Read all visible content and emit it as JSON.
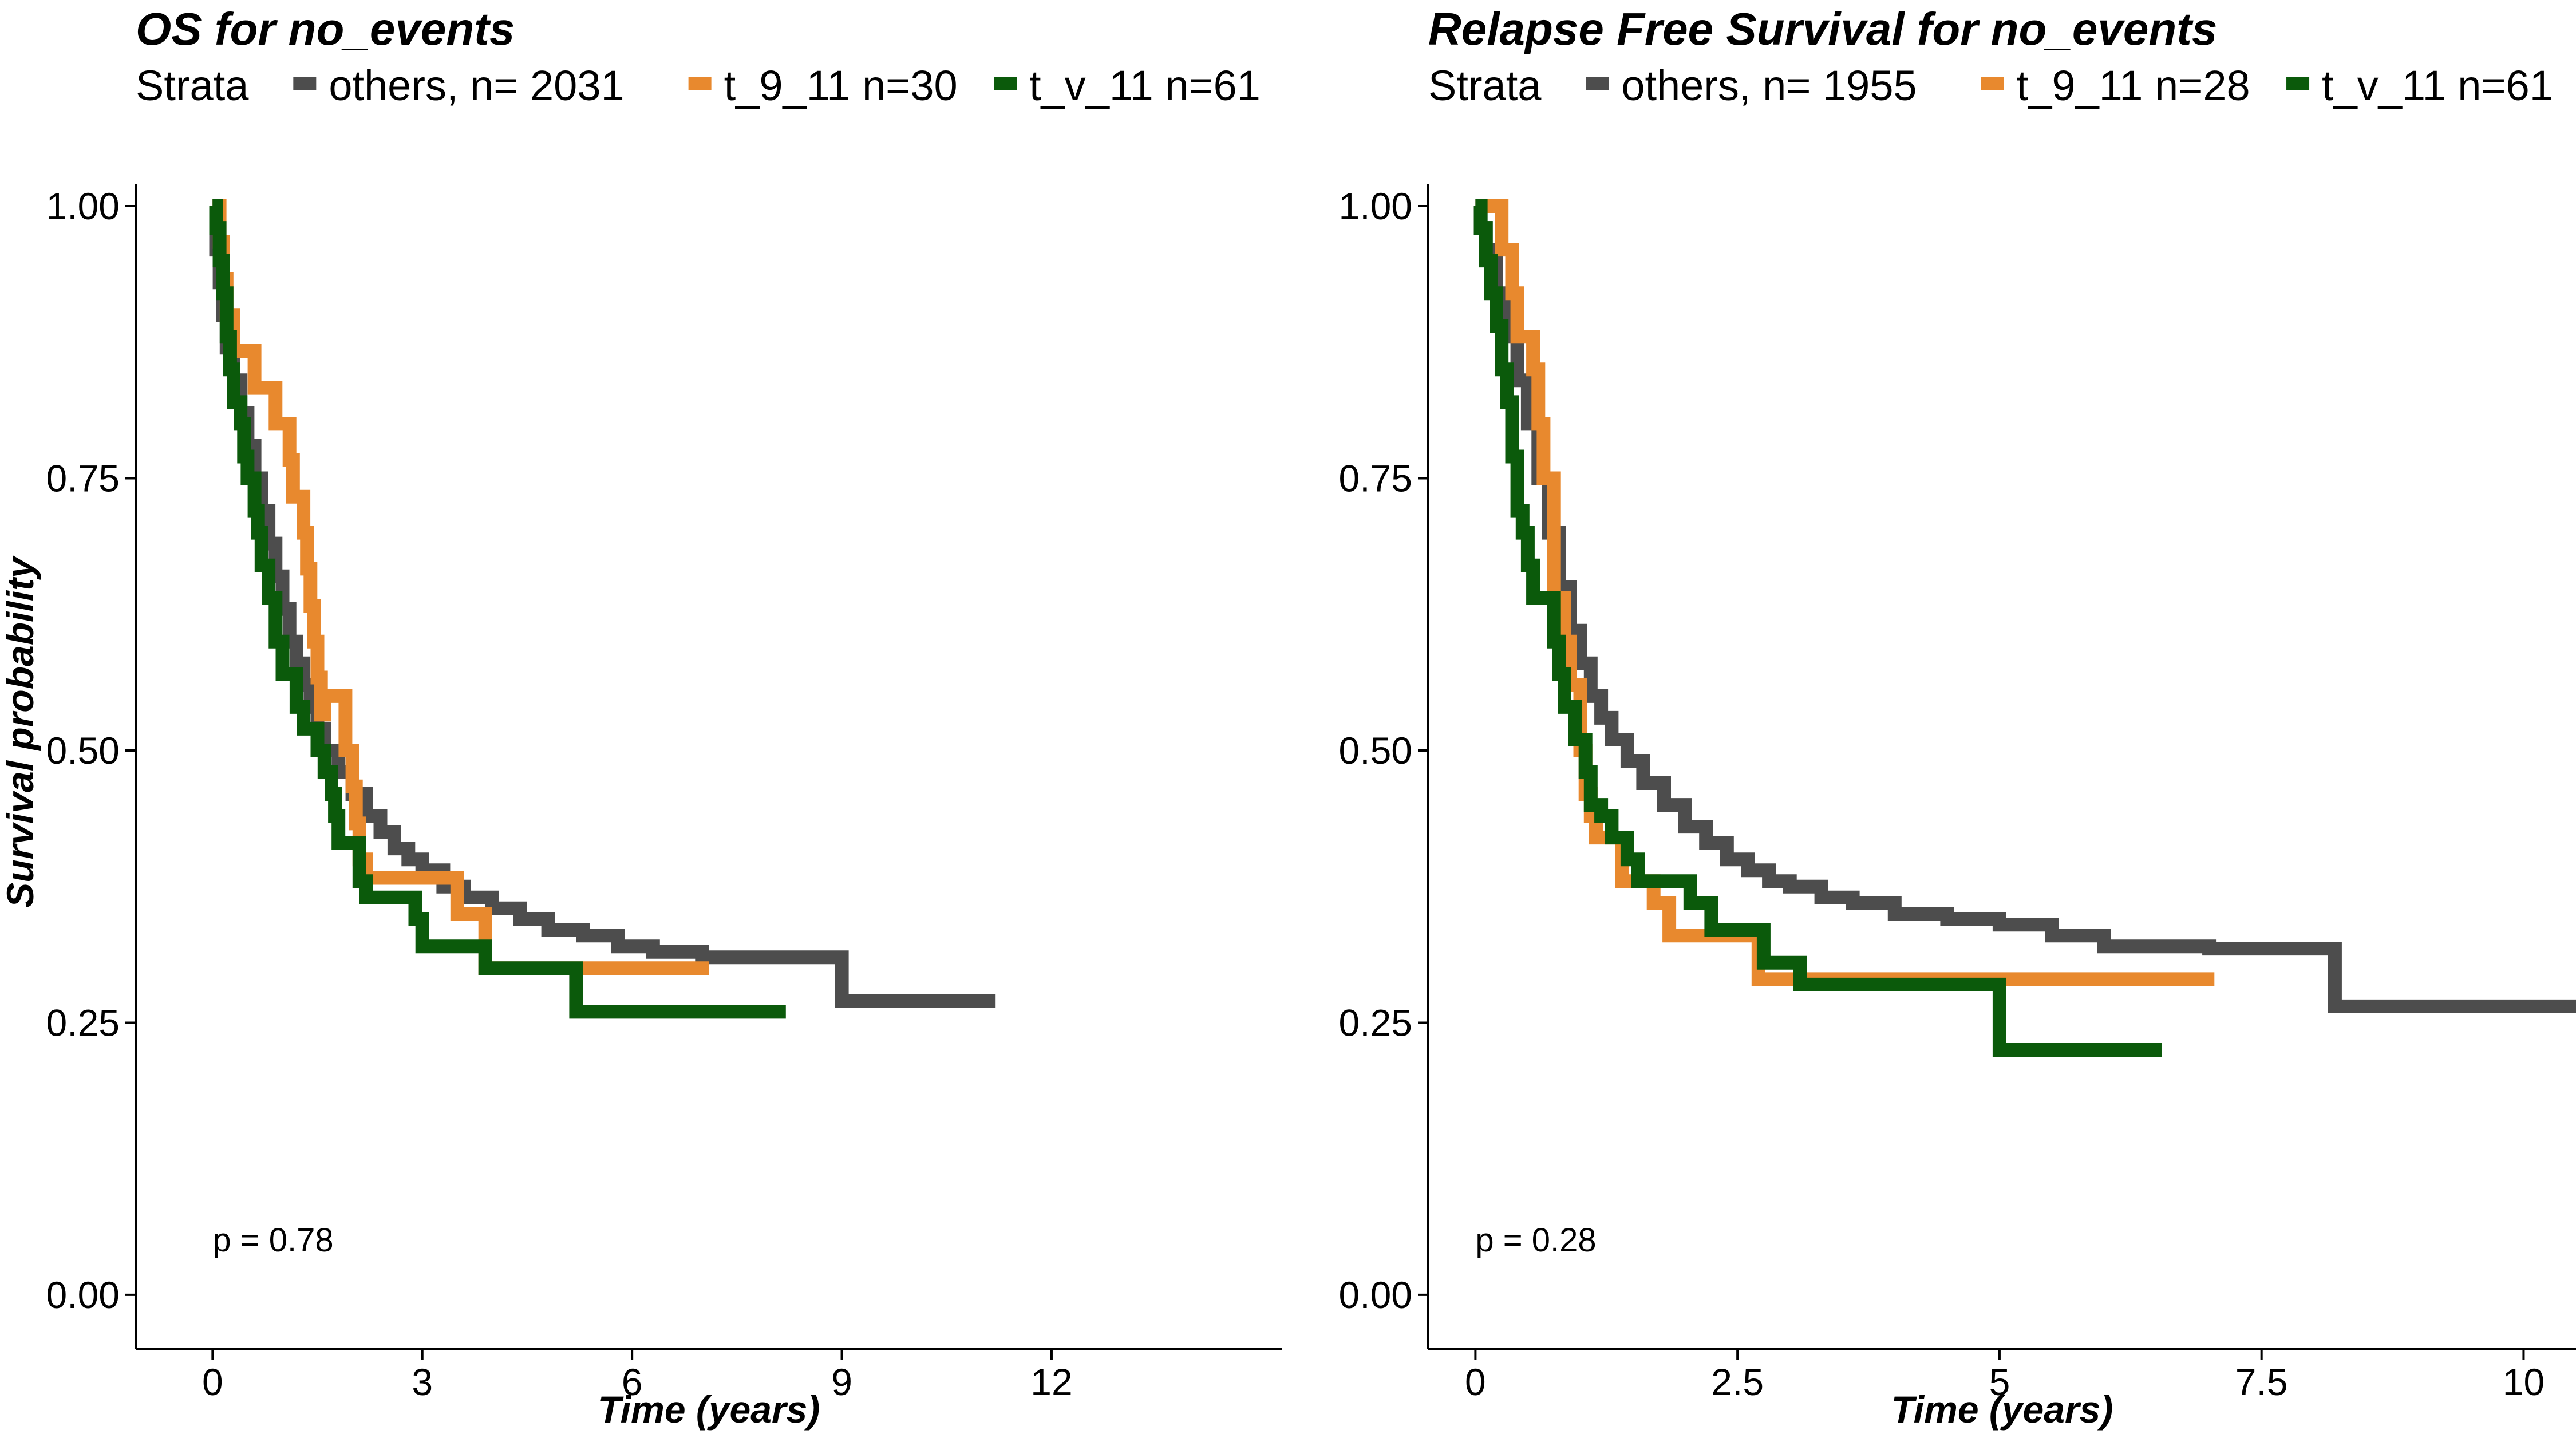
{
  "chart_data": [
    {
      "type": "line",
      "step": true,
      "title": "OS  for  no_events",
      "legend_title": "Strata",
      "legend_position": "top",
      "xlabel": "Time (years)",
      "ylabel": "Survival probability",
      "xlim": [
        -1.1,
        15.3
      ],
      "ylim": [
        -0.05,
        1.02
      ],
      "xticks": [
        0,
        3,
        6,
        9,
        12
      ],
      "xtick_labels": [
        "0",
        "3",
        "6",
        "9",
        "12"
      ],
      "yticks": [
        0,
        0.25,
        0.5,
        0.75,
        1
      ],
      "ytick_labels": [
        "0.00",
        "0.25",
        "0.50",
        "0.75",
        "1.00"
      ],
      "annotation": "p = 0.78",
      "annotation_pos": [
        0,
        0.04
      ],
      "grid": false,
      "series": [
        {
          "name": "others, n= 2031",
          "color": "#4d4d4d",
          "points": [
            [
              0,
              1.0
            ],
            [
              0.05,
              0.96
            ],
            [
              0.1,
              0.93
            ],
            [
              0.15,
              0.9
            ],
            [
              0.2,
              0.87
            ],
            [
              0.3,
              0.84
            ],
            [
              0.4,
              0.81
            ],
            [
              0.5,
              0.78
            ],
            [
              0.6,
              0.75
            ],
            [
              0.7,
              0.72
            ],
            [
              0.8,
              0.69
            ],
            [
              0.9,
              0.66
            ],
            [
              1.0,
              0.63
            ],
            [
              1.1,
              0.6
            ],
            [
              1.2,
              0.58
            ],
            [
              1.3,
              0.56
            ],
            [
              1.4,
              0.54
            ],
            [
              1.5,
              0.52
            ],
            [
              1.6,
              0.5
            ],
            [
              1.8,
              0.48
            ],
            [
              2.0,
              0.46
            ],
            [
              2.2,
              0.44
            ],
            [
              2.4,
              0.425
            ],
            [
              2.6,
              0.41
            ],
            [
              2.8,
              0.4
            ],
            [
              3.0,
              0.39
            ],
            [
              3.3,
              0.375
            ],
            [
              3.6,
              0.365
            ],
            [
              4.0,
              0.355
            ],
            [
              4.4,
              0.345
            ],
            [
              4.8,
              0.335
            ],
            [
              5.3,
              0.33
            ],
            [
              5.8,
              0.32
            ],
            [
              6.3,
              0.315
            ],
            [
              7.0,
              0.31
            ],
            [
              9.0,
              0.31
            ],
            [
              9.0,
              0.27
            ],
            [
              11.2,
              0.27
            ]
          ]
        },
        {
          "name": "t_9_11 n=30",
          "color": "#e8892e",
          "points": [
            [
              0,
              1.0
            ],
            [
              0.1,
              0.967
            ],
            [
              0.15,
              0.933
            ],
            [
              0.2,
              0.9
            ],
            [
              0.3,
              0.867
            ],
            [
              0.6,
              0.867
            ],
            [
              0.6,
              0.833
            ],
            [
              0.9,
              0.833
            ],
            [
              0.9,
              0.8
            ],
            [
              1.1,
              0.8
            ],
            [
              1.1,
              0.767
            ],
            [
              1.15,
              0.733
            ],
            [
              1.3,
              0.7
            ],
            [
              1.35,
              0.667
            ],
            [
              1.4,
              0.633
            ],
            [
              1.45,
              0.6
            ],
            [
              1.5,
              0.567
            ],
            [
              1.55,
              0.567
            ],
            [
              1.55,
              0.533
            ],
            [
              1.6,
              0.533
            ],
            [
              1.6,
              0.55
            ],
            [
              1.9,
              0.55
            ],
            [
              1.9,
              0.5
            ],
            [
              2.0,
              0.467
            ],
            [
              2.05,
              0.433
            ],
            [
              2.1,
              0.4
            ],
            [
              2.2,
              0.383
            ],
            [
              3.5,
              0.383
            ],
            [
              3.5,
              0.35
            ],
            [
              3.9,
              0.35
            ],
            [
              3.9,
              0.3
            ],
            [
              7.1,
              0.3
            ]
          ]
        },
        {
          "name": "t_v_11 n=61",
          "color": "#0b5a0b",
          "points": [
            [
              0,
              1.0
            ],
            [
              0.05,
              0.98
            ],
            [
              0.1,
              0.95
            ],
            [
              0.15,
              0.92
            ],
            [
              0.2,
              0.88
            ],
            [
              0.25,
              0.85
            ],
            [
              0.3,
              0.82
            ],
            [
              0.4,
              0.8
            ],
            [
              0.45,
              0.77
            ],
            [
              0.5,
              0.75
            ],
            [
              0.6,
              0.72
            ],
            [
              0.65,
              0.7
            ],
            [
              0.7,
              0.67
            ],
            [
              0.8,
              0.64
            ],
            [
              0.9,
              0.6
            ],
            [
              1.0,
              0.57
            ],
            [
              1.2,
              0.57
            ],
            [
              1.2,
              0.54
            ],
            [
              1.3,
              0.52
            ],
            [
              1.5,
              0.5
            ],
            [
              1.6,
              0.48
            ],
            [
              1.7,
              0.46
            ],
            [
              1.75,
              0.44
            ],
            [
              1.8,
              0.415
            ],
            [
              2.1,
              0.415
            ],
            [
              2.1,
              0.38
            ],
            [
              2.2,
              0.38
            ],
            [
              2.2,
              0.365
            ],
            [
              2.9,
              0.365
            ],
            [
              2.9,
              0.345
            ],
            [
              3.0,
              0.345
            ],
            [
              3.0,
              0.32
            ],
            [
              3.9,
              0.32
            ],
            [
              3.9,
              0.3
            ],
            [
              5.2,
              0.3
            ],
            [
              5.2,
              0.26
            ],
            [
              8.2,
              0.26
            ]
          ]
        }
      ]
    },
    {
      "type": "line",
      "step": true,
      "title": "Relapse Free Survival for  no_events",
      "legend_title": "Strata",
      "legend_position": "top",
      "xlabel": "Time (years)",
      "ylabel": "",
      "xlim": [
        -0.45,
        10.5
      ],
      "ylim": [
        -0.05,
        1.02
      ],
      "xticks": [
        0,
        2.5,
        5,
        7.5,
        10
      ],
      "xtick_labels": [
        "0",
        "2.5",
        "5",
        "7.5",
        "10"
      ],
      "yticks": [
        0,
        0.25,
        0.5,
        0.75,
        1
      ],
      "ytick_labels": [
        "0.00",
        "0.25",
        "0.50",
        "0.75",
        "1.00"
      ],
      "annotation": "p = 0.28",
      "annotation_pos": [
        0,
        0.04
      ],
      "grid": false,
      "series": [
        {
          "name": "others, n= 1955",
          "color": "#4d4d4d",
          "points": [
            [
              0,
              1.0
            ],
            [
              0.05,
              0.98
            ],
            [
              0.1,
              0.96
            ],
            [
              0.2,
              0.92
            ],
            [
              0.3,
              0.88
            ],
            [
              0.4,
              0.84
            ],
            [
              0.5,
              0.8
            ],
            [
              0.6,
              0.75
            ],
            [
              0.7,
              0.7
            ],
            [
              0.8,
              0.65
            ],
            [
              0.9,
              0.61
            ],
            [
              1.0,
              0.58
            ],
            [
              1.1,
              0.55
            ],
            [
              1.2,
              0.53
            ],
            [
              1.3,
              0.51
            ],
            [
              1.45,
              0.49
            ],
            [
              1.6,
              0.47
            ],
            [
              1.8,
              0.45
            ],
            [
              2.0,
              0.43
            ],
            [
              2.2,
              0.415
            ],
            [
              2.4,
              0.4
            ],
            [
              2.6,
              0.39
            ],
            [
              2.8,
              0.38
            ],
            [
              3.0,
              0.375
            ],
            [
              3.3,
              0.365
            ],
            [
              3.6,
              0.36
            ],
            [
              4.0,
              0.35
            ],
            [
              4.5,
              0.345
            ],
            [
              5.0,
              0.34
            ],
            [
              5.5,
              0.33
            ],
            [
              6.0,
              0.32
            ],
            [
              7.0,
              0.318
            ],
            [
              8.2,
              0.318
            ],
            [
              8.2,
              0.265
            ],
            [
              10.5,
              0.265
            ]
          ]
        },
        {
          "name": "t_9_11 n=28",
          "color": "#e8892e",
          "points": [
            [
              0,
              1.0
            ],
            [
              0.25,
              1.0
            ],
            [
              0.25,
              0.96
            ],
            [
              0.35,
              0.96
            ],
            [
              0.35,
              0.92
            ],
            [
              0.4,
              0.92
            ],
            [
              0.4,
              0.88
            ],
            [
              0.55,
              0.88
            ],
            [
              0.55,
              0.85
            ],
            [
              0.6,
              0.85
            ],
            [
              0.6,
              0.8
            ],
            [
              0.65,
              0.8
            ],
            [
              0.65,
              0.75
            ],
            [
              0.75,
              0.75
            ],
            [
              0.75,
              0.64
            ],
            [
              0.85,
              0.6
            ],
            [
              0.9,
              0.56
            ],
            [
              1.0,
              0.5
            ],
            [
              1.05,
              0.46
            ],
            [
              1.1,
              0.44
            ],
            [
              1.15,
              0.42
            ],
            [
              1.4,
              0.42
            ],
            [
              1.4,
              0.38
            ],
            [
              1.7,
              0.38
            ],
            [
              1.7,
              0.36
            ],
            [
              1.85,
              0.33
            ],
            [
              2.7,
              0.33
            ],
            [
              2.7,
              0.29
            ],
            [
              7.05,
              0.29
            ]
          ]
        },
        {
          "name": "t_v_11 n=61",
          "color": "#0b5a0b",
          "points": [
            [
              0,
              1.0
            ],
            [
              0.05,
              0.98
            ],
            [
              0.1,
              0.95
            ],
            [
              0.15,
              0.92
            ],
            [
              0.2,
              0.89
            ],
            [
              0.25,
              0.85
            ],
            [
              0.3,
              0.82
            ],
            [
              0.35,
              0.77
            ],
            [
              0.4,
              0.72
            ],
            [
              0.45,
              0.7
            ],
            [
              0.5,
              0.67
            ],
            [
              0.55,
              0.64
            ],
            [
              0.75,
              0.64
            ],
            [
              0.75,
              0.6
            ],
            [
              0.8,
              0.57
            ],
            [
              0.85,
              0.54
            ],
            [
              0.95,
              0.54
            ],
            [
              0.95,
              0.51
            ],
            [
              1.05,
              0.48
            ],
            [
              1.1,
              0.45
            ],
            [
              1.2,
              0.44
            ],
            [
              1.3,
              0.42
            ],
            [
              1.45,
              0.42
            ],
            [
              1.45,
              0.4
            ],
            [
              1.55,
              0.38
            ],
            [
              1.65,
              0.38
            ],
            [
              2.05,
              0.38
            ],
            [
              2.05,
              0.36
            ],
            [
              2.25,
              0.36
            ],
            [
              2.25,
              0.335
            ],
            [
              2.75,
              0.335
            ],
            [
              2.75,
              0.305
            ],
            [
              3.1,
              0.305
            ],
            [
              3.1,
              0.285
            ],
            [
              5.0,
              0.285
            ],
            [
              5.0,
              0.225
            ],
            [
              6.55,
              0.225
            ]
          ]
        }
      ]
    }
  ]
}
